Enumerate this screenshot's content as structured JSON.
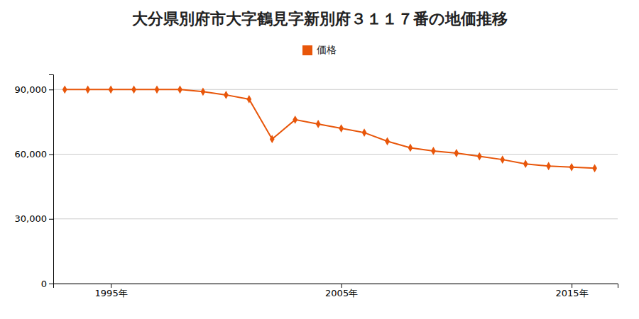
{
  "chart_data": {
    "type": "line",
    "title": "大分県別府市大字鶴見字新別府３１１７番の地価推移",
    "x": [
      1993,
      1994,
      1995,
      1996,
      1997,
      1998,
      1999,
      2000,
      2001,
      2002,
      2003,
      2004,
      2005,
      2006,
      2007,
      2008,
      2009,
      2010,
      2011,
      2012,
      2013,
      2014,
      2015,
      2016
    ],
    "series": [
      {
        "name": "価格",
        "color": "#E8560A",
        "marker": "diamond",
        "values": [
          90000,
          90000,
          90000,
          90000,
          90000,
          90000,
          89000,
          87500,
          85500,
          67000,
          76000,
          74000,
          72000,
          70000,
          66000,
          63000,
          61500,
          60500,
          59000,
          57500,
          55500,
          54500,
          54000,
          53500
        ]
      }
    ],
    "xlim": [
      1992.5,
      2017
    ],
    "xticks": [
      {
        "value": 1995,
        "label": "1995年"
      },
      {
        "value": 2005,
        "label": "2005年"
      },
      {
        "value": 2015,
        "label": "2015年"
      }
    ],
    "ylim": [
      0,
      97000
    ],
    "yticks": [
      0,
      {
        "value": 30000,
        "label": "30,000"
      },
      {
        "value": 60000,
        "label": "60,000"
      },
      {
        "value": 90000,
        "label": "90,000"
      }
    ],
    "grid": "y",
    "legend": "top"
  }
}
